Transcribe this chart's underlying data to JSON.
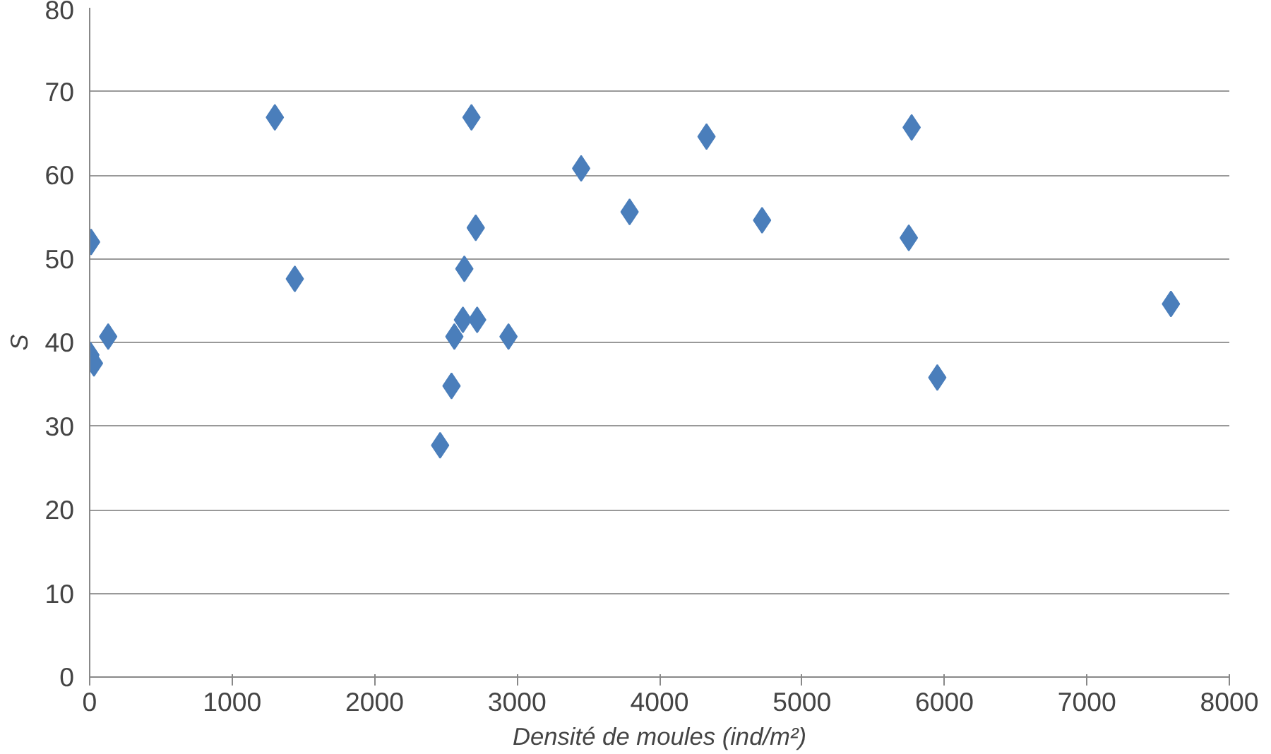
{
  "chart_data": {
    "type": "scatter",
    "xlabel": "Densité de moules (ind/m²)",
    "ylabel": "S",
    "x": [
      10,
      5,
      30,
      130,
      1300,
      1440,
      2460,
      2540,
      2560,
      2620,
      2630,
      2680,
      2710,
      2720,
      2940,
      3450,
      3790,
      4330,
      4720,
      5750,
      5770,
      5950,
      7590
    ],
    "series": [
      {
        "color": "#4a7ebb",
        "values": [
          52,
          38.5,
          37.5,
          40.7,
          66.9,
          47.6,
          27.7,
          34.8,
          40.7,
          42.7,
          48.8,
          66.9,
          53.7,
          42.7,
          40.7,
          60.8,
          55.6,
          64.6,
          54.6,
          52.5,
          65.7,
          35.8,
          44.6
        ]
      }
    ],
    "xlim": [
      0,
      8000
    ],
    "xticks": [
      0,
      1000,
      2000,
      3000,
      4000,
      5000,
      6000,
      7000,
      8000
    ],
    "ylim": [
      0,
      80
    ],
    "yticks": [
      0,
      10,
      20,
      30,
      40,
      50,
      60,
      70,
      80
    ],
    "grid": "y",
    "marker": "diamond"
  }
}
